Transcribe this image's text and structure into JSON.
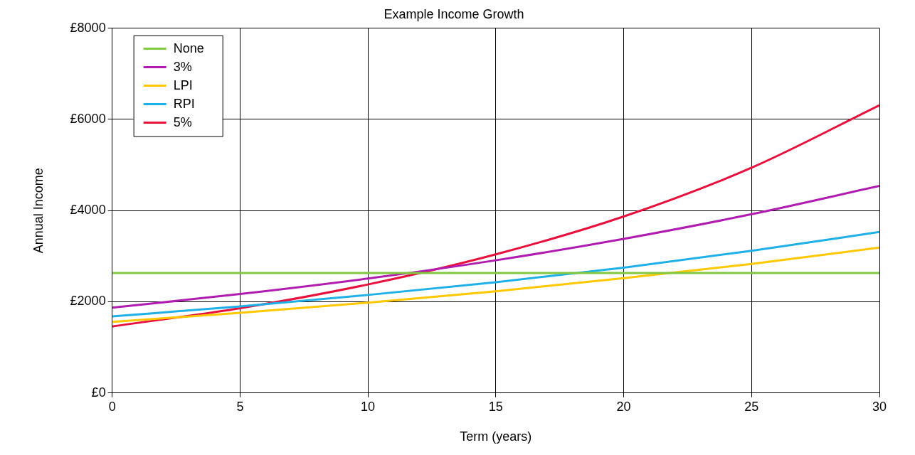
{
  "chart_data": {
    "type": "line",
    "title": "Example Income Growth",
    "xlabel": "Term (years)",
    "ylabel": "Annual Income",
    "x": [
      0,
      5,
      10,
      15,
      20,
      25,
      30
    ],
    "series": [
      {
        "name": "None",
        "color": "#80c840",
        "values": [
          2630,
          2630,
          2630,
          2630,
          2630,
          2630,
          2630
        ]
      },
      {
        "name": "3%",
        "color": "#b01cb0",
        "values": [
          1870,
          2170,
          2510,
          2910,
          3380,
          3920,
          4540
        ]
      },
      {
        "name": "LPI",
        "color": "#ffc800",
        "values": [
          1560,
          1760,
          1980,
          2230,
          2520,
          2830,
          3190
        ]
      },
      {
        "name": "RPI",
        "color": "#20b0e8",
        "values": [
          1680,
          1900,
          2150,
          2430,
          2750,
          3120,
          3530
        ]
      },
      {
        "name": "5%",
        "color": "#e8103c",
        "values": [
          1460,
          1860,
          2380,
          3040,
          3870,
          4940,
          6310
        ]
      }
    ],
    "xlim": [
      0,
      30
    ],
    "xticks": [
      0,
      5,
      10,
      15,
      20,
      25,
      30
    ],
    "ylim": [
      0,
      8000
    ],
    "yticks": [
      {
        "value": 0,
        "label": "£0"
      },
      {
        "value": 2000,
        "label": "£2000"
      },
      {
        "value": 4000,
        "label": "£4000"
      },
      {
        "value": 6000,
        "label": "£6000"
      },
      {
        "value": 8000,
        "label": "£8000"
      }
    ],
    "grid": true,
    "legend": "top left",
    "marker": "none"
  }
}
